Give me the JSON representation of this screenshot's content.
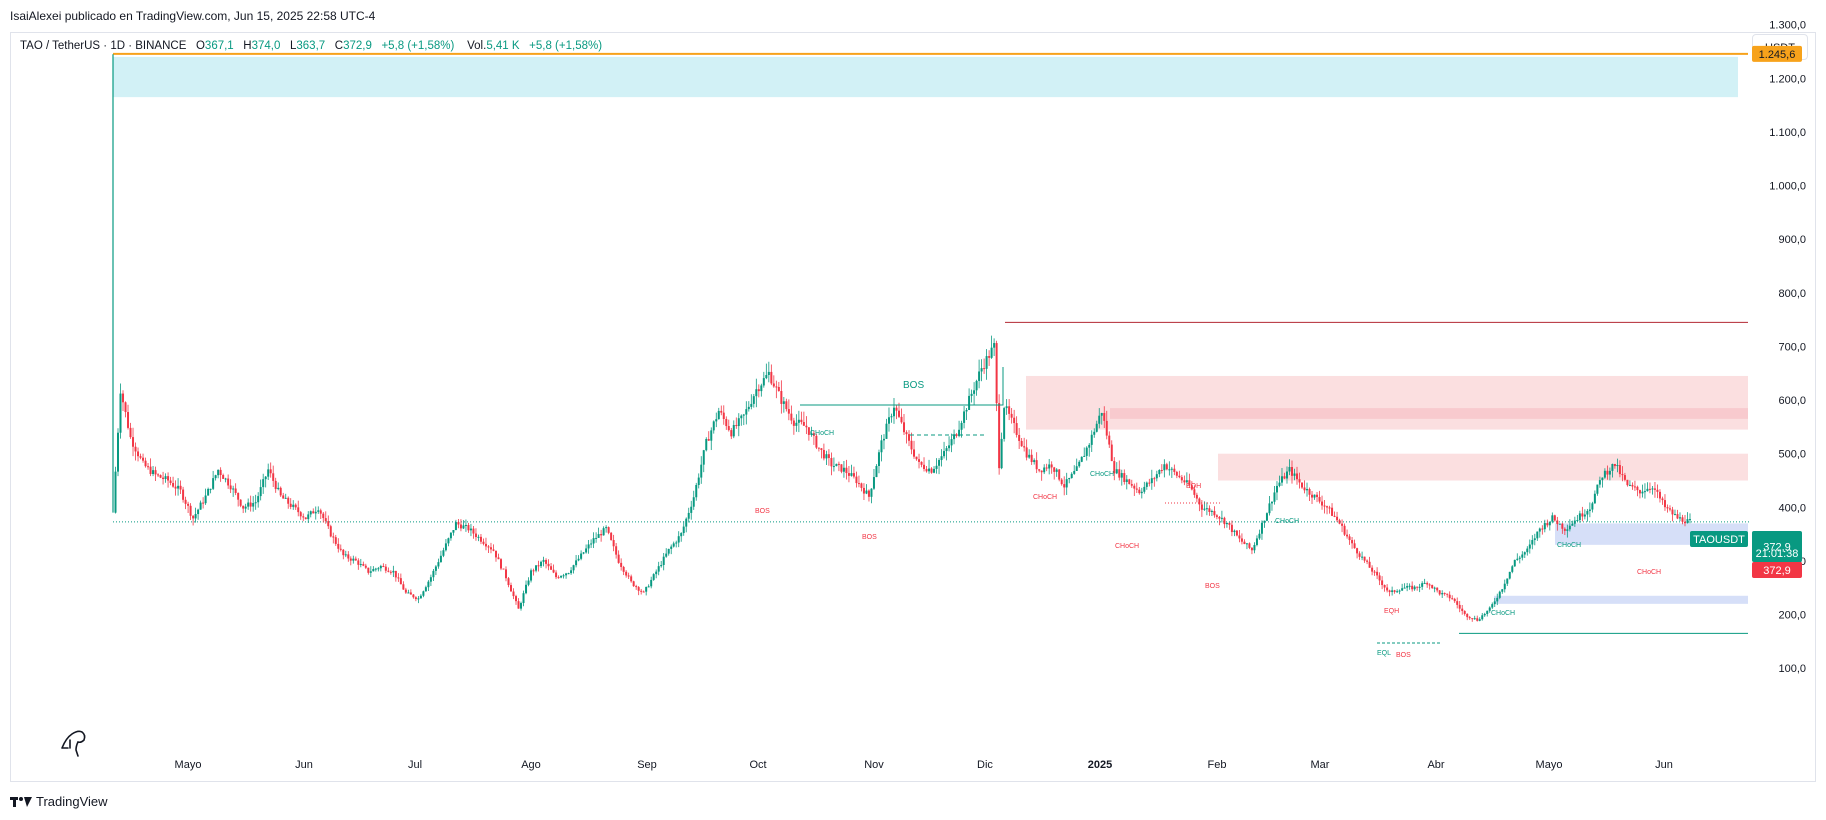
{
  "header": {
    "published_by": "IsaiAlexei publicado en TradingView.com, Jun 15, 2025 22:58 UTC-4"
  },
  "legend": {
    "symbol": "TAO / TetherUS · 1D · BINANCE",
    "open_label": "O",
    "open": "367,1",
    "high_label": "H",
    "high": "374,0",
    "low_label": "L",
    "low": "363,7",
    "close_label": "C",
    "close": "372,9",
    "change": "+5,8 (+1,58%)",
    "volume_label": "Vol.",
    "volume": "5,41 K",
    "volume_change": "+5,8 (+1,58%)"
  },
  "currency_button": "USDT",
  "footer": {
    "brand": "TradingView"
  },
  "price_tags": {
    "top_level": "1.245,6",
    "symbol_tag": "TAOUSDT",
    "last_price": "372,9",
    "countdown": "21:01:38",
    "red_price": "372,9"
  },
  "colors": {
    "up": "#089981",
    "down": "#f23645",
    "orange": "#f7a21b",
    "cyan_zone": "#cdeff5",
    "pink_zone": "#fbdbdd",
    "blue_zone": "#d1dcf7",
    "axis_text": "#131722"
  },
  "chart_data": {
    "type": "candlestick",
    "symbol": "TAO / TetherUS",
    "timeframe": "1D",
    "exchange": "BINANCE",
    "y_axis_ticks": [
      "100,0",
      "200,0",
      "300,0",
      "400,0",
      "500,0",
      "600,0",
      "700,0",
      "800,0",
      "900,0",
      "1.000,0",
      "1.100,0",
      "1.200,0",
      "1.300,0"
    ],
    "y_axis_values": [
      100,
      200,
      300,
      400,
      500,
      600,
      700,
      800,
      900,
      1000,
      1100,
      1200,
      1300
    ],
    "x_axis_labels": [
      "Mayo",
      "Jun",
      "Jul",
      "Ago",
      "Sep",
      "Oct",
      "Nov",
      "Dic",
      "2025",
      "Feb",
      "Mar",
      "Abr",
      "Mayo",
      "Jun"
    ],
    "ylim": [
      0,
      1340
    ],
    "last_price": 372.9,
    "price_path": [
      [
        0,
        390
      ],
      [
        3,
        620
      ],
      [
        7,
        530
      ],
      [
        12,
        480
      ],
      [
        17,
        460
      ],
      [
        22,
        450
      ],
      [
        27,
        430
      ],
      [
        32,
        380
      ],
      [
        37,
        420
      ],
      [
        42,
        470
      ],
      [
        47,
        440
      ],
      [
        52,
        400
      ],
      [
        57,
        410
      ],
      [
        62,
        470
      ],
      [
        67,
        420
      ],
      [
        72,
        400
      ],
      [
        77,
        380
      ],
      [
        82,
        400
      ],
      [
        87,
        350
      ],
      [
        92,
        310
      ],
      [
        97,
        300
      ],
      [
        102,
        280
      ],
      [
        107,
        290
      ],
      [
        112,
        280
      ],
      [
        117,
        240
      ],
      [
        122,
        230
      ],
      [
        127,
        270
      ],
      [
        132,
        320
      ],
      [
        137,
        370
      ],
      [
        142,
        360
      ],
      [
        147,
        340
      ],
      [
        152,
        320
      ],
      [
        157,
        270
      ],
      [
        162,
        210
      ],
      [
        167,
        280
      ],
      [
        172,
        300
      ],
      [
        177,
        270
      ],
      [
        182,
        280
      ],
      [
        187,
        310
      ],
      [
        192,
        340
      ],
      [
        197,
        360
      ],
      [
        202,
        300
      ],
      [
        207,
        260
      ],
      [
        212,
        240
      ],
      [
        217,
        280
      ],
      [
        222,
        320
      ],
      [
        227,
        350
      ],
      [
        232,
        420
      ],
      [
        237,
        520
      ],
      [
        242,
        580
      ],
      [
        247,
        540
      ],
      [
        252,
        570
      ],
      [
        257,
        620
      ],
      [
        262,
        650
      ],
      [
        267,
        600
      ],
      [
        272,
        560
      ],
      [
        277,
        550
      ],
      [
        282,
        510
      ],
      [
        287,
        480
      ],
      [
        292,
        470
      ],
      [
        297,
        450
      ],
      [
        302,
        420
      ],
      [
        307,
        520
      ],
      [
        312,
        590
      ],
      [
        317,
        530
      ],
      [
        322,
        480
      ],
      [
        327,
        470
      ],
      [
        332,
        500
      ],
      [
        337,
        540
      ],
      [
        342,
        600
      ],
      [
        347,
        660
      ],
      [
        352,
        700
      ],
      [
        354,
        480
      ],
      [
        356,
        590
      ],
      [
        360,
        550
      ],
      [
        365,
        500
      ],
      [
        370,
        470
      ],
      [
        375,
        480
      ],
      [
        380,
        440
      ],
      [
        385,
        470
      ],
      [
        390,
        520
      ],
      [
        395,
        580
      ],
      [
        400,
        470
      ],
      [
        405,
        450
      ],
      [
        410,
        430
      ],
      [
        415,
        450
      ],
      [
        420,
        480
      ],
      [
        425,
        460
      ],
      [
        430,
        440
      ],
      [
        435,
        400
      ],
      [
        440,
        390
      ],
      [
        445,
        370
      ],
      [
        450,
        340
      ],
      [
        455,
        320
      ],
      [
        460,
        380
      ],
      [
        465,
        440
      ],
      [
        470,
        470
      ],
      [
        475,
        440
      ],
      [
        480,
        420
      ],
      [
        485,
        400
      ],
      [
        490,
        370
      ],
      [
        495,
        330
      ],
      [
        500,
        300
      ],
      [
        505,
        270
      ],
      [
        510,
        240
      ],
      [
        515,
        250
      ],
      [
        520,
        250
      ],
      [
        525,
        260
      ],
      [
        530,
        240
      ],
      [
        535,
        230
      ],
      [
        540,
        200
      ],
      [
        545,
        190
      ],
      [
        550,
        210
      ],
      [
        555,
        250
      ],
      [
        560,
        300
      ],
      [
        565,
        320
      ],
      [
        570,
        360
      ],
      [
        575,
        380
      ],
      [
        580,
        360
      ],
      [
        585,
        380
      ],
      [
        590,
        400
      ],
      [
        595,
        460
      ],
      [
        600,
        480
      ],
      [
        605,
        440
      ],
      [
        610,
        430
      ],
      [
        615,
        440
      ],
      [
        620,
        400
      ],
      [
        625,
        380
      ],
      [
        630,
        372.9
      ]
    ],
    "zones": [
      {
        "label": "cyan-supply",
        "from_price": 1165,
        "to_price": 1240
      },
      {
        "label": "pink-supply-1",
        "from_price": 545,
        "to_price": 645
      },
      {
        "label": "pink-supply-2",
        "from_price": 450,
        "to_price": 500
      },
      {
        "label": "blue-demand-1",
        "from_price": 330,
        "to_price": 370
      },
      {
        "label": "blue-demand-2",
        "from_price": 220,
        "to_price": 235
      }
    ],
    "levels": [
      {
        "label": "orange-top",
        "price": 1245.6
      },
      {
        "label": "red-high",
        "price": 745
      },
      {
        "label": "green-low",
        "price": 165
      }
    ],
    "annotations": [
      "BOS",
      "CHoCH",
      "BOS",
      "BOS",
      "CHoCH",
      "CHoCH",
      "EQH",
      "CHoCH",
      "CHoCH",
      "BOS",
      "CHoCH",
      "EQH",
      "EQL",
      "BOS",
      "CHoCH",
      "BOS",
      "CHoCH"
    ]
  }
}
